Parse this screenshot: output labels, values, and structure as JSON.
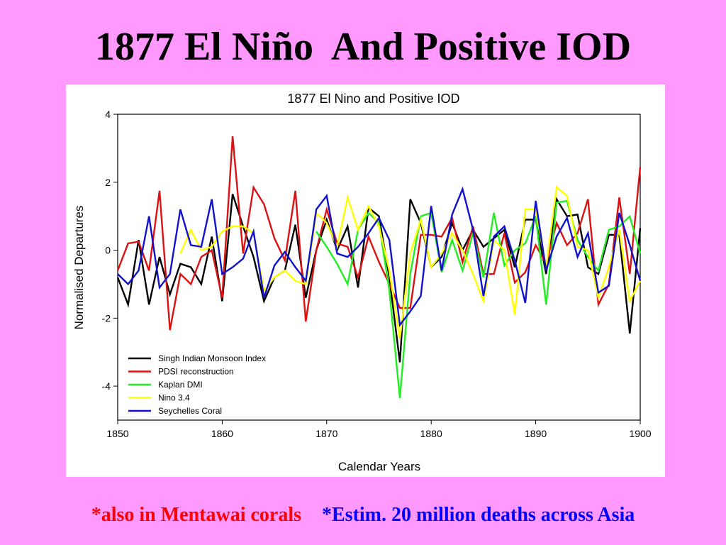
{
  "slide": {
    "title": "1877 El Niño  And Positive IOD",
    "notes": {
      "left": "*also in Mentawai corals",
      "right": "*Estim. 20 million deaths across Asia"
    }
  },
  "colors": {
    "background": "#ff99ff",
    "note_left": "#ff0000",
    "note_right": "#0000ff"
  },
  "chart_data": {
    "type": "line",
    "title": "1877 El Nino and Positive IOD",
    "xlabel": "Calendar Years",
    "ylabel": "Normalised Departures",
    "xlim": [
      1850,
      1900
    ],
    "ylim": [
      -5,
      4
    ],
    "xticks": [
      1850,
      1860,
      1870,
      1880,
      1890,
      1900
    ],
    "yticks": [
      -4,
      -2,
      0,
      2,
      4
    ],
    "legend": "bottom-left",
    "grid": false,
    "series": [
      {
        "name": "Singh Indian Monsoon Index",
        "color": "#000000",
        "points": [
          [
            1850,
            -0.8
          ],
          [
            1851,
            -1.6
          ],
          [
            1852,
            0.3
          ],
          [
            1853,
            -1.6
          ],
          [
            1854,
            -0.2
          ],
          [
            1855,
            -1.3
          ],
          [
            1856,
            -0.4
          ],
          [
            1857,
            -0.5
          ],
          [
            1858,
            -1.0
          ],
          [
            1859,
            0.4
          ],
          [
            1860,
            -1.5
          ],
          [
            1861,
            1.65
          ],
          [
            1862,
            0.7
          ],
          [
            1863,
            -0.2
          ],
          [
            1864,
            -1.5
          ],
          [
            1865,
            -0.8
          ],
          [
            1866,
            -0.6
          ],
          [
            1867,
            0.75
          ],
          [
            1868,
            -1.4
          ],
          [
            1869,
            0.0
          ],
          [
            1870,
            0.9
          ],
          [
            1871,
            0.0
          ],
          [
            1872,
            0.7
          ],
          [
            1873,
            -1.1
          ],
          [
            1874,
            1.25
          ],
          [
            1875,
            1.0
          ],
          [
            1876,
            -0.8
          ],
          [
            1877,
            -3.3
          ],
          [
            1878,
            1.5
          ],
          [
            1879,
            0.8
          ],
          [
            1880,
            -0.5
          ],
          [
            1881,
            -0.2
          ],
          [
            1882,
            0.8
          ],
          [
            1883,
            0.0
          ],
          [
            1884,
            0.6
          ],
          [
            1885,
            0.1
          ],
          [
            1886,
            0.35
          ],
          [
            1887,
            0.6
          ],
          [
            1888,
            -0.5
          ],
          [
            1889,
            0.9
          ],
          [
            1890,
            0.9
          ],
          [
            1891,
            -0.7
          ],
          [
            1892,
            1.5
          ],
          [
            1893,
            1.0
          ],
          [
            1894,
            1.05
          ],
          [
            1895,
            -0.5
          ],
          [
            1896,
            -0.7
          ],
          [
            1897,
            0.45
          ],
          [
            1898,
            0.45
          ],
          [
            1899,
            -2.45
          ],
          [
            1900,
            0.65
          ]
        ]
      },
      {
        "name": "PDSI reconstruction",
        "color": "#dd1111",
        "points": [
          [
            1850,
            -0.6
          ],
          [
            1851,
            0.2
          ],
          [
            1852,
            0.25
          ],
          [
            1853,
            -0.6
          ],
          [
            1854,
            1.75
          ],
          [
            1855,
            -2.35
          ],
          [
            1856,
            -0.7
          ],
          [
            1857,
            -1.0
          ],
          [
            1858,
            -0.2
          ],
          [
            1859,
            0.0
          ],
          [
            1860,
            -1.4
          ],
          [
            1861,
            3.35
          ],
          [
            1862,
            -0.1
          ],
          [
            1863,
            1.85
          ],
          [
            1864,
            1.35
          ],
          [
            1865,
            0.35
          ],
          [
            1866,
            -0.3
          ],
          [
            1867,
            1.75
          ],
          [
            1868,
            -2.1
          ],
          [
            1869,
            0.0
          ],
          [
            1870,
            1.2
          ],
          [
            1871,
            0.2
          ],
          [
            1872,
            0.1
          ],
          [
            1873,
            -0.8
          ],
          [
            1874,
            0.4
          ],
          [
            1875,
            -0.35
          ],
          [
            1876,
            -1.0
          ],
          [
            1877,
            -1.7
          ],
          [
            1878,
            -1.7
          ],
          [
            1879,
            0.45
          ],
          [
            1880,
            0.45
          ],
          [
            1881,
            0.4
          ],
          [
            1882,
            0.95
          ],
          [
            1883,
            -0.35
          ],
          [
            1884,
            0.7
          ],
          [
            1885,
            -0.7
          ],
          [
            1886,
            -0.7
          ],
          [
            1887,
            0.5
          ],
          [
            1888,
            -0.95
          ],
          [
            1889,
            -0.65
          ],
          [
            1890,
            0.15
          ],
          [
            1891,
            -0.4
          ],
          [
            1892,
            0.8
          ],
          [
            1893,
            0.15
          ],
          [
            1894,
            0.5
          ],
          [
            1895,
            1.5
          ],
          [
            1896,
            -1.6
          ],
          [
            1897,
            -1.0
          ],
          [
            1898,
            1.55
          ],
          [
            1899,
            -0.7
          ],
          [
            1900,
            2.45
          ]
        ]
      },
      {
        "name": "Kaplan DMI",
        "color": "#22ee22",
        "points": [
          [
            1869,
            0.55
          ],
          [
            1870,
            0.1
          ],
          [
            1871,
            -0.4
          ],
          [
            1872,
            -1.0
          ],
          [
            1873,
            0.6
          ],
          [
            1874,
            1.1
          ],
          [
            1875,
            0.8
          ],
          [
            1876,
            -1.2
          ],
          [
            1877,
            -4.35
          ],
          [
            1878,
            -0.7
          ],
          [
            1879,
            1.0
          ],
          [
            1880,
            1.1
          ],
          [
            1881,
            -0.65
          ],
          [
            1882,
            0.3
          ],
          [
            1883,
            -0.6
          ],
          [
            1884,
            0.5
          ],
          [
            1885,
            -0.8
          ],
          [
            1886,
            1.1
          ],
          [
            1887,
            -0.45
          ],
          [
            1888,
            0.0
          ],
          [
            1889,
            0.2
          ],
          [
            1890,
            1.0
          ],
          [
            1891,
            -1.6
          ],
          [
            1892,
            1.4
          ],
          [
            1893,
            1.45
          ],
          [
            1894,
            0.3
          ],
          [
            1895,
            -0.2
          ],
          [
            1896,
            -0.6
          ],
          [
            1897,
            0.6
          ],
          [
            1898,
            0.7
          ],
          [
            1899,
            1.0
          ],
          [
            1900,
            -0.1
          ]
        ]
      },
      {
        "name": "Nino 3.4",
        "color": "#ffff00",
        "points": [
          [
            1856,
            -0.1
          ],
          [
            1857,
            0.6
          ],
          [
            1858,
            0.0
          ],
          [
            1859,
            0.1
          ],
          [
            1860,
            0.55
          ],
          [
            1861,
            0.7
          ],
          [
            1862,
            0.7
          ],
          [
            1863,
            0.5
          ],
          [
            1864,
            -1.2
          ],
          [
            1865,
            -0.8
          ],
          [
            1866,
            -0.6
          ],
          [
            1867,
            -0.9
          ],
          [
            1868,
            -1.0
          ],
          [
            1869,
            1.1
          ],
          [
            1870,
            0.8
          ],
          [
            1871,
            0.1
          ],
          [
            1872,
            1.55
          ],
          [
            1873,
            0.6
          ],
          [
            1874,
            1.3
          ],
          [
            1875,
            0.7
          ],
          [
            1876,
            -0.6
          ],
          [
            1877,
            -2.6
          ],
          [
            1878,
            -0.1
          ],
          [
            1879,
            0.9
          ],
          [
            1880,
            -0.5
          ],
          [
            1881,
            -0.1
          ],
          [
            1882,
            0.5
          ],
          [
            1883,
            0.0
          ],
          [
            1884,
            -0.7
          ],
          [
            1885,
            -1.5
          ],
          [
            1886,
            0.3
          ],
          [
            1887,
            0.0
          ],
          [
            1888,
            -1.9
          ],
          [
            1889,
            1.2
          ],
          [
            1890,
            1.2
          ],
          [
            1891,
            -0.5
          ],
          [
            1892,
            1.85
          ],
          [
            1893,
            1.6
          ],
          [
            1894,
            0.1
          ],
          [
            1895,
            0.0
          ],
          [
            1896,
            -1.4
          ],
          [
            1897,
            -0.5
          ],
          [
            1898,
            0.6
          ],
          [
            1899,
            -1.5
          ],
          [
            1900,
            -0.9
          ]
        ]
      },
      {
        "name": "Seychelles Coral",
        "color": "#1111cc",
        "points": [
          [
            1850,
            -0.7
          ],
          [
            1851,
            -1.0
          ],
          [
            1852,
            -0.6
          ],
          [
            1853,
            1.0
          ],
          [
            1854,
            -1.1
          ],
          [
            1855,
            -0.7
          ],
          [
            1856,
            1.2
          ],
          [
            1857,
            0.15
          ],
          [
            1858,
            0.1
          ],
          [
            1859,
            1.5
          ],
          [
            1860,
            -0.7
          ],
          [
            1861,
            -0.5
          ],
          [
            1862,
            -0.25
          ],
          [
            1863,
            0.55
          ],
          [
            1864,
            -1.4
          ],
          [
            1865,
            -0.45
          ],
          [
            1866,
            -0.05
          ],
          [
            1867,
            -0.5
          ],
          [
            1868,
            -0.9
          ],
          [
            1869,
            1.2
          ],
          [
            1870,
            1.6
          ],
          [
            1871,
            -0.1
          ],
          [
            1872,
            -0.2
          ],
          [
            1873,
            0.1
          ],
          [
            1874,
            0.5
          ],
          [
            1875,
            0.95
          ],
          [
            1876,
            0.3
          ],
          [
            1877,
            -2.2
          ],
          [
            1878,
            -1.8
          ],
          [
            1879,
            -1.35
          ],
          [
            1880,
            1.3
          ],
          [
            1881,
            -0.6
          ],
          [
            1882,
            1.05
          ],
          [
            1883,
            1.8
          ],
          [
            1884,
            0.6
          ],
          [
            1885,
            -1.35
          ],
          [
            1886,
            0.4
          ],
          [
            1887,
            0.7
          ],
          [
            1888,
            -0.3
          ],
          [
            1889,
            -1.55
          ],
          [
            1890,
            1.45
          ],
          [
            1891,
            -0.6
          ],
          [
            1892,
            0.4
          ],
          [
            1893,
            0.95
          ],
          [
            1894,
            -0.2
          ],
          [
            1895,
            0.5
          ],
          [
            1896,
            -1.25
          ],
          [
            1897,
            -1.05
          ],
          [
            1898,
            1.1
          ],
          [
            1899,
            0.15
          ],
          [
            1900,
            -0.9
          ]
        ]
      }
    ]
  }
}
